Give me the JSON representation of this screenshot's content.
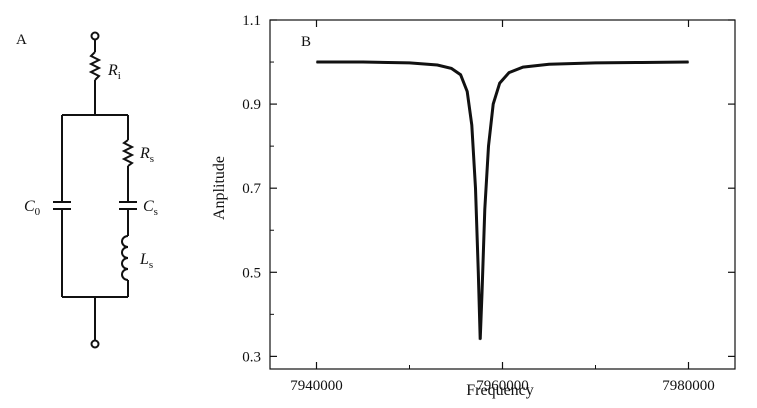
{
  "panel_a": {
    "label": "A",
    "components": [
      {
        "symbol": "R",
        "subscript": "i"
      },
      {
        "symbol": "R",
        "subscript": "s"
      },
      {
        "symbol": "C",
        "subscript": "0"
      },
      {
        "symbol": "C",
        "subscript": "s"
      },
      {
        "symbol": "L",
        "subscript": "s"
      }
    ]
  },
  "panel_b": {
    "label": "B"
  },
  "chart_data": {
    "type": "line",
    "xlabel": "Frequency",
    "ylabel": "Anplitude",
    "xlim": [
      7935000,
      7985000
    ],
    "ylim": [
      0.27,
      1.1
    ],
    "x_ticks": [
      7940000,
      7960000,
      7980000
    ],
    "x_tick_labels": [
      "7940000",
      "7960000",
      "7980000"
    ],
    "y_ticks": [
      0.3,
      0.5,
      0.7,
      0.9,
      1.1
    ],
    "y_tick_labels": [
      "0.3",
      "0.5",
      "0.7",
      "0.9",
      "1.1"
    ],
    "grid": false,
    "series": [
      {
        "x": [
          7940000,
          7945000,
          7950000,
          7953000,
          7954500,
          7955500,
          7956200,
          7956700,
          7957100,
          7957400,
          7957600,
          7957800,
          7958100,
          7958500,
          7959000,
          7959700,
          7960700,
          7962200,
          7965000,
          7970000,
          7975000,
          7980000
        ],
        "y": [
          1.0,
          1.0,
          0.998,
          0.993,
          0.985,
          0.97,
          0.93,
          0.85,
          0.7,
          0.5,
          0.34,
          0.45,
          0.65,
          0.8,
          0.9,
          0.95,
          0.975,
          0.988,
          0.995,
          0.998,
          0.999,
          1.0
        ]
      }
    ]
  }
}
